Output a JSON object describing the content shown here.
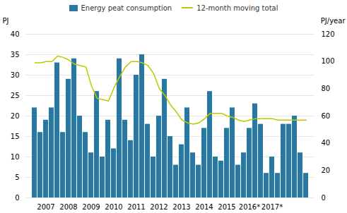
{
  "chart_data": {
    "type": "bar",
    "categories": [
      null,
      null,
      "2007",
      null,
      null,
      null,
      "2008",
      null,
      null,
      null,
      "2009",
      null,
      null,
      null,
      "2010",
      null,
      null,
      null,
      "2011",
      null,
      null,
      null,
      "2012",
      null,
      null,
      null,
      "2013",
      null,
      null,
      null,
      "2014",
      null,
      null,
      null,
      "2015",
      null,
      null,
      null,
      "2016*",
      null,
      null,
      null,
      "2017*",
      null,
      null,
      null,
      null,
      null,
      null
    ],
    "series": [
      {
        "name": "Energy peat consumption",
        "type": "bar",
        "color": "#2878a4",
        "values": [
          22,
          16,
          19,
          22,
          33,
          16,
          29,
          34,
          20,
          16,
          11,
          26,
          10,
          19,
          12,
          34,
          19,
          14,
          30,
          35,
          18,
          10,
          20,
          29,
          15,
          8,
          13,
          22,
          11,
          8,
          17,
          26,
          10,
          9,
          17,
          22,
          8,
          11,
          17,
          23,
          18,
          6,
          10,
          6,
          18,
          18,
          20,
          11,
          6
        ]
      },
      {
        "name": "12-month moving total",
        "type": "line",
        "color": "#bec800",
        "axis": "y2",
        "values": [
          99,
          99,
          100,
          100,
          104,
          103,
          101,
          98,
          97,
          96,
          82,
          73,
          72,
          71,
          81,
          89,
          96,
          100,
          100,
          99,
          97,
          91,
          80,
          75,
          68,
          63,
          57,
          55,
          54,
          55,
          58,
          62,
          62,
          62,
          60,
          59,
          57,
          56,
          57,
          58,
          58,
          58,
          58,
          57,
          57,
          57,
          57,
          57,
          57
        ]
      }
    ],
    "ylabel": "PJ",
    "y2label": "PJ/year",
    "ylim": [
      0,
      40
    ],
    "yticks": [
      0,
      5,
      10,
      15,
      20,
      25,
      30,
      35,
      40
    ],
    "y2lim": [
      0,
      120
    ],
    "y2ticks": [
      0,
      20,
      40,
      60,
      80,
      100,
      120
    ],
    "grid": true,
    "legend": "top"
  }
}
